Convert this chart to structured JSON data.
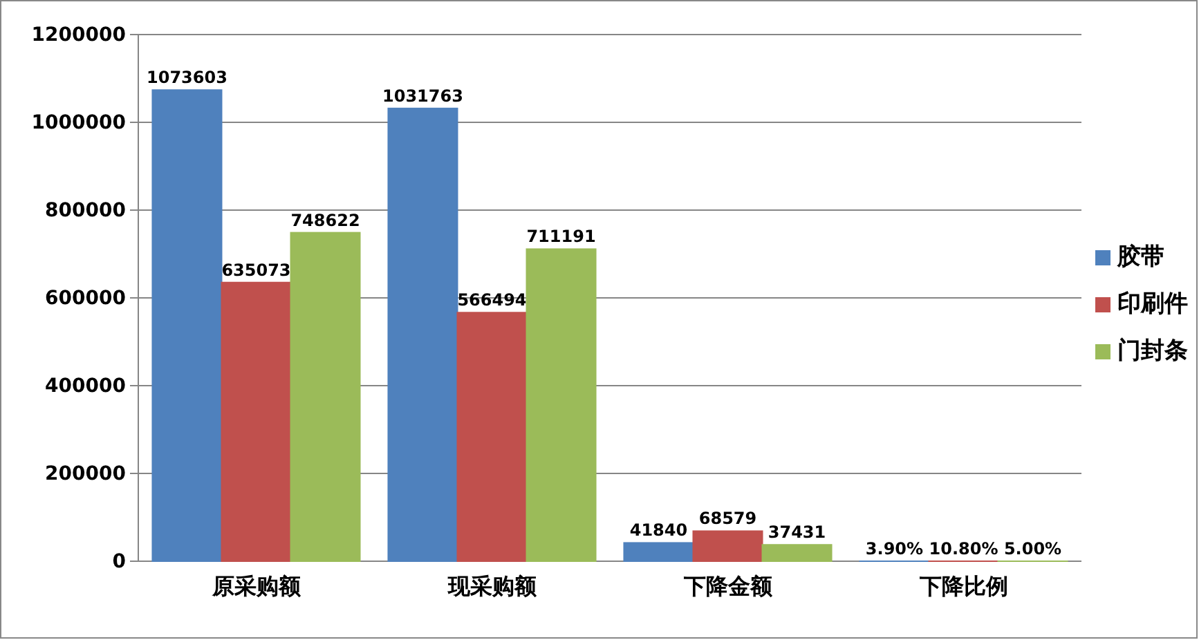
{
  "chart_data": {
    "type": "bar",
    "categories": [
      "原采购额",
      "现采购额",
      "下降金额",
      "下降比例"
    ],
    "series": [
      {
        "name": "胶带",
        "color": "#4f81bd",
        "values": [
          1073603,
          1031763,
          41840,
          3.9
        ],
        "value_labels": [
          "1073603",
          "1031763",
          "41840",
          "3.90%"
        ]
      },
      {
        "name": "印刷件",
        "color": "#c0504d",
        "values": [
          635073,
          566494,
          68579,
          10.8
        ],
        "value_labels": [
          "635073",
          "566494",
          "68579",
          "10.80%"
        ]
      },
      {
        "name": "门封条",
        "color": "#9bbb59",
        "values": [
          748622,
          711191,
          37431,
          5
        ],
        "value_labels": [
          "748622",
          "711191",
          "37431",
          "5.00%"
        ]
      }
    ],
    "ylim": [
      0,
      1200000
    ],
    "yticks": [
      0,
      200000,
      400000,
      600000,
      800000,
      1000000,
      1200000
    ],
    "grid": "y",
    "legend": "right"
  }
}
